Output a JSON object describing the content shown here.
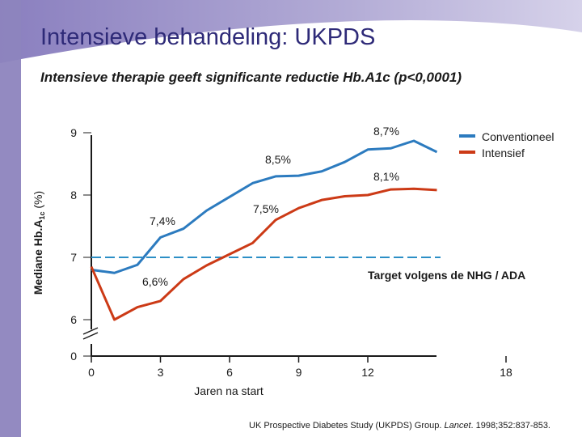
{
  "slide": {
    "title": "Intensieve behandeling: UKPDS",
    "subtitle": "Intensieve therapie geeft significante reductie Hb.A1c (p<0,0001)",
    "citation": {
      "before": "UK Prospective Diabetes Study (UKPDS) Group. ",
      "journal": "Lancet",
      "after": ". 1998;352:837-853."
    }
  },
  "colors": {
    "title": "#2e2a78",
    "conventional": "#2c7bbf",
    "intensive": "#cc3a16",
    "target_line": "#2c8fc6",
    "axis": "#1a1a1a",
    "background_band": "#9e96c8"
  },
  "chart_data": {
    "type": "line",
    "xlabel": "Jaren na start",
    "ylabel_main": "Mediane Hb.A",
    "ylabel_sub": "1c",
    "ylabel_unit": " (%)",
    "x_ticks": [
      0,
      3,
      6,
      9,
      12,
      18
    ],
    "y_ticks": [
      "0",
      "6",
      "7",
      "8",
      "9"
    ],
    "y_break": true,
    "series": [
      {
        "name": "Conventioneel",
        "color": "#2c7bbf",
        "x": [
          0,
          1,
          2,
          3,
          4,
          5,
          6,
          7,
          8,
          9,
          10,
          11,
          12,
          13,
          14,
          15
        ],
        "values": [
          6.8,
          6.75,
          6.88,
          7.32,
          7.46,
          7.75,
          7.97,
          8.19,
          8.3,
          8.31,
          8.38,
          8.53,
          8.73,
          8.75,
          8.87,
          8.69
        ]
      },
      {
        "name": "Intensief",
        "color": "#cc3a16",
        "x": [
          0,
          1,
          2,
          3,
          4,
          5,
          6,
          7,
          8,
          9,
          10,
          11,
          12,
          13,
          14,
          15
        ],
        "values": [
          6.85,
          6.0,
          6.2,
          6.3,
          6.65,
          6.87,
          7.05,
          7.23,
          7.6,
          7.79,
          7.92,
          7.98,
          8.0,
          8.09,
          8.1,
          8.08
        ]
      }
    ],
    "target": {
      "value": 7.0,
      "label": "Target volgens de NHG / ADA"
    },
    "annotations": [
      "8,7%",
      "8,5%",
      "8,1%",
      "7,5%",
      "7,4%",
      "6,6%"
    ]
  }
}
